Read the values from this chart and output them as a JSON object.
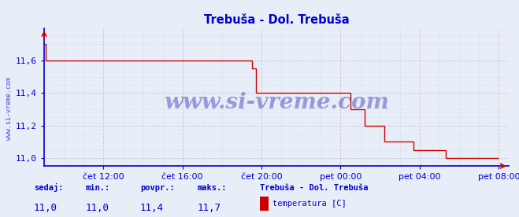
{
  "title": "Trebuša - Dol. Trebuša",
  "line_color": "#cc0000",
  "bg_color": "#e8eef8",
  "plot_bg_color": "#e8eef8",
  "grid_color_h": "#cc9999",
  "grid_color_v": "#aaaacc",
  "axis_color": "#0000cc",
  "tick_color": "#0000cc",
  "ylim": [
    10.95,
    11.8
  ],
  "yticks": [
    11.0,
    11.2,
    11.4,
    11.6
  ],
  "ytick_labels": [
    "11,0",
    "11,2",
    "11,4",
    "11,6"
  ],
  "xtick_labels": [
    "čet 12:00",
    "čet 16:00",
    "čet 20:00",
    "pet 00:00",
    "pet 04:00",
    "pet 08:00"
  ],
  "xtick_pos": [
    3,
    7,
    11,
    15,
    19,
    23
  ],
  "xlim": [
    0,
    23.5
  ],
  "watermark": "www.si-vreme.com",
  "watermark_color": "#0000aa",
  "watermark_alpha": 0.35,
  "footer_labels": [
    "sedaj:",
    "min.:",
    "povpr.:",
    "maks.:"
  ],
  "footer_values": [
    "11,0",
    "11,0",
    "11,4",
    "11,7"
  ],
  "legend_title": "Trebuša - Dol. Trebuša",
  "legend_label": "temperatura [C]",
  "legend_color": "#cc0000",
  "ylabel_text": "www.si-vreme.com",
  "step_x": [
    0,
    0.08,
    0.08,
    10.5,
    10.5,
    10.7,
    10.7,
    11.0,
    11.0,
    15.5,
    15.5,
    16.2,
    16.2,
    17.2,
    17.2,
    18.7,
    18.7,
    20.3,
    20.3,
    22.5,
    22.5,
    23.0
  ],
  "step_y": [
    11.7,
    11.7,
    11.6,
    11.6,
    11.55,
    11.55,
    11.4,
    11.4,
    11.4,
    11.4,
    11.3,
    11.3,
    11.2,
    11.2,
    11.1,
    11.1,
    11.05,
    11.05,
    11.0,
    11.0,
    11.0,
    11.0
  ]
}
